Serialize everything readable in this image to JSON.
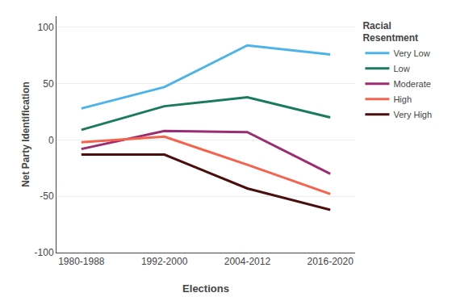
{
  "chart_data": {
    "type": "line",
    "categories": [
      "1980-1988",
      "1992-2000",
      "2004-2012",
      "2016-2020"
    ],
    "series": [
      {
        "name": "Very Low",
        "color": "#4EB3E8",
        "values": [
          28,
          47,
          84,
          76
        ]
      },
      {
        "name": "Low",
        "color": "#1A7A5E",
        "values": [
          9,
          30,
          38,
          20
        ]
      },
      {
        "name": "Moderate",
        "color": "#9B2D72",
        "values": [
          -8,
          8,
          7,
          -30
        ]
      },
      {
        "name": "High",
        "color": "#F4634E",
        "values": [
          -2,
          3,
          -22,
          -48
        ]
      },
      {
        "name": "Very High",
        "color": "#4A0E0E",
        "values": [
          -13,
          -13,
          -43,
          -62
        ]
      }
    ],
    "x_label": "Elections",
    "y_label": "Net Party Identification",
    "legend_title": "Racial\nResentment",
    "ylim": [
      -100,
      110
    ],
    "yticks": [
      -100,
      -50,
      0,
      50,
      100
    ],
    "grid": true,
    "legend": "upper right"
  }
}
